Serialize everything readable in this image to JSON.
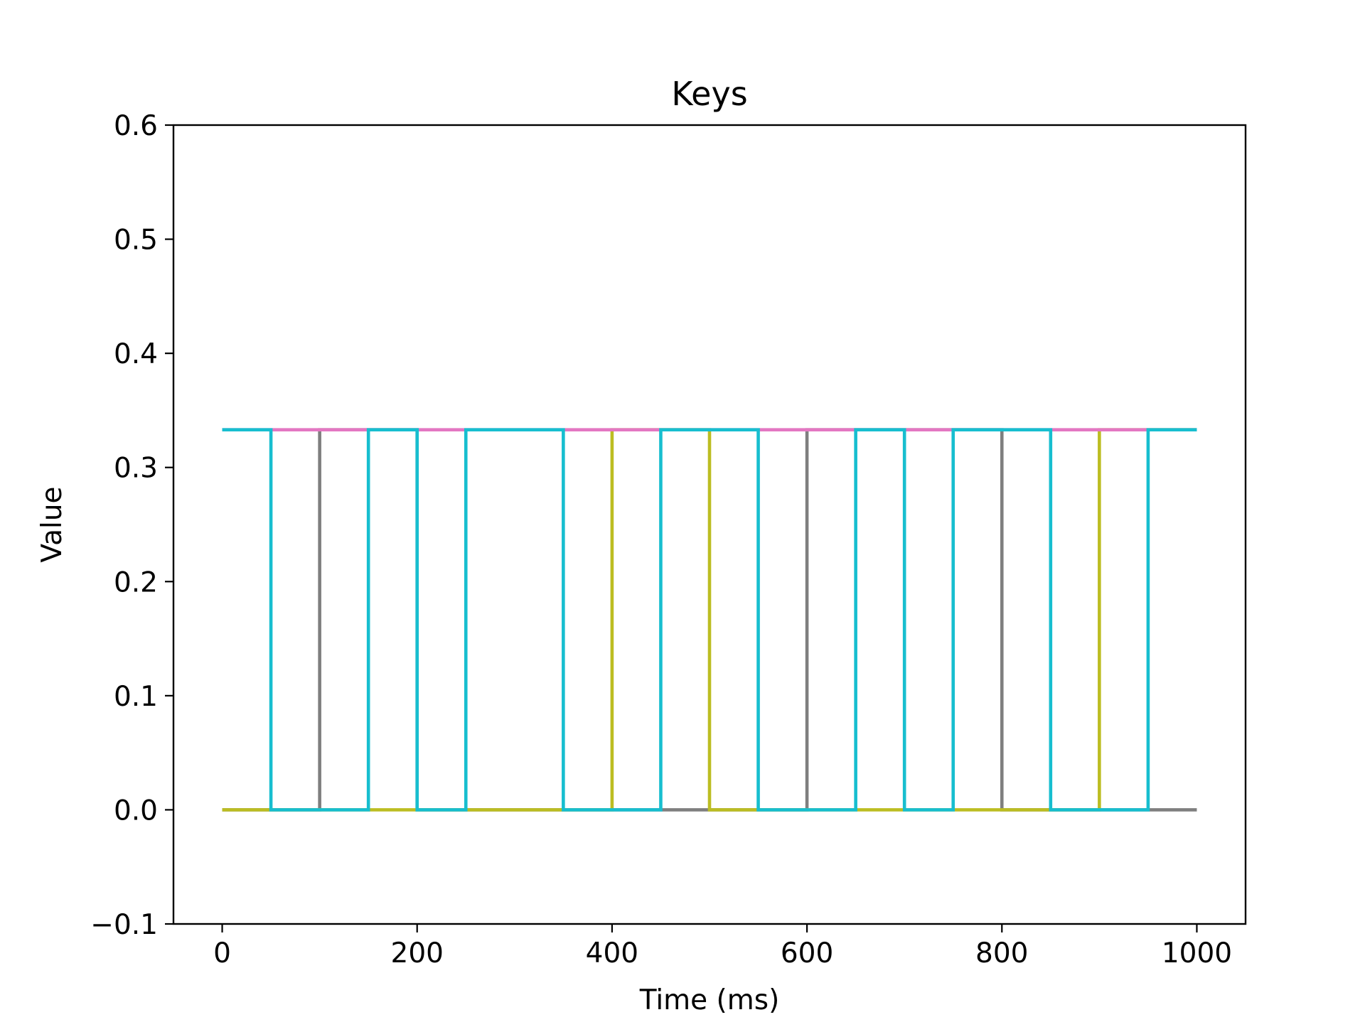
{
  "chart_data": {
    "type": "line",
    "title": "Keys",
    "xlabel": "Time (ms)",
    "ylabel": "Value",
    "xlim": [
      -50,
      1050
    ],
    "ylim": [
      -0.1,
      0.6
    ],
    "xticks": [
      0,
      200,
      400,
      600,
      800,
      1000
    ],
    "xtick_labels": [
      "0",
      "200",
      "400",
      "600",
      "800",
      "1000"
    ],
    "yticks": [
      -0.1,
      0.0,
      0.1,
      0.2,
      0.3,
      0.4,
      0.5,
      0.6
    ],
    "ytick_labels": [
      "−0.1",
      "0.0",
      "0.1",
      "0.2",
      "0.3",
      "0.4",
      "0.5",
      "0.6"
    ],
    "grid": false,
    "legend": "none",
    "draw_order": [
      "gray",
      "olive",
      "pink",
      "cyan"
    ],
    "series": [
      {
        "color": "#7f7f7f",
        "x": [
          0,
          100,
          100,
          200,
          200,
          300,
          300,
          500,
          500,
          600,
          600,
          800,
          800,
          1000
        ],
        "y": [
          0,
          0,
          0.333,
          0.333,
          0,
          0,
          0,
          0,
          0,
          0,
          0.333,
          0.333,
          0,
          0
        ]
      },
      {
        "color": "#bcbd22",
        "x": [
          0,
          300,
          300,
          400,
          400,
          500,
          500,
          800,
          800,
          900,
          900,
          1000
        ],
        "y": [
          0,
          0,
          0,
          0,
          0.333,
          0.333,
          0,
          0,
          0,
          0,
          0.333,
          0.333
        ]
      },
      {
        "color": "#e377c2",
        "x": [
          0,
          100,
          150,
          400,
          450,
          600,
          650,
          900,
          950,
          1000
        ],
        "y": [
          0.333,
          0.333,
          0.333,
          0.333,
          0.333,
          0.333,
          0.333,
          0.333,
          0.333,
          0.333
        ]
      },
      {
        "color": "#17becf",
        "x": [
          0,
          50,
          50,
          150,
          150,
          200,
          200,
          250,
          250,
          350,
          350,
          450,
          450,
          550,
          550,
          650,
          650,
          700,
          700,
          750,
          750,
          850,
          850,
          950,
          950,
          1000
        ],
        "y": [
          0.333,
          0.333,
          0,
          0,
          0.333,
          0.333,
          0,
          0,
          0.333,
          0.333,
          0,
          0,
          0.333,
          0.333,
          0,
          0,
          0.333,
          0.333,
          0,
          0,
          0.333,
          0.333,
          0,
          0,
          0.333,
          0.333
        ]
      }
    ]
  }
}
